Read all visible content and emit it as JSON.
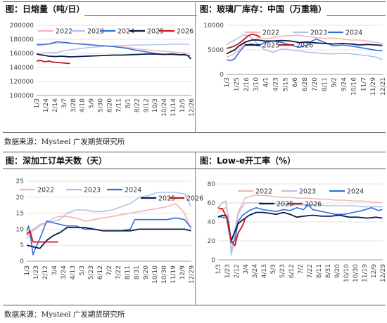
{
  "panels": [
    {
      "title": "图：日熔量（吨/日）"
    },
    {
      "title": "图：玻璃厂库存：中国（万重箱）"
    },
    {
      "title": "图：深加工订单天数（天）"
    },
    {
      "title": "图：Low-e开工率（%）"
    }
  ],
  "sources": [
    "数据来源：Mysteel 广发期货研究所",
    "数据来源：Mysteel 广发期货研究所"
  ],
  "colors": {
    "s2022": "#f4b6b6",
    "s2023": "#aec3ea",
    "s2024": "#2f6fdb",
    "s2025": "#0b1a4a",
    "s2026": "#c6161c"
  },
  "chart_data": [
    {
      "type": "line",
      "title": "图：日熔量（吨/日）",
      "ylim": [
        100000,
        200000
      ],
      "yticks": [
        100000,
        120000,
        140000,
        160000,
        180000,
        200000
      ],
      "ytick_labels": [
        "100000",
        "120000",
        "140000",
        "160000",
        "180000",
        "200000"
      ],
      "xticks": [
        "1/3",
        "1/24",
        "2/14",
        "3/7",
        "3/28",
        "4/18",
        "5/9",
        "5/30",
        "6/20",
        "7/11",
        "8/1",
        "8/22",
        "9/12",
        "10/3",
        "10/24",
        "11/14",
        "12/5",
        "12/26"
      ],
      "legend": [
        "2022",
        "2023",
        "2024",
        "2025",
        "2026"
      ],
      "series": [
        {
          "name": "2022",
          "color": "#f4b6b6",
          "x": [
            1,
            12,
            20,
            30,
            45,
            60,
            80,
            100,
            120,
            140,
            150,
            170,
            200,
            220,
            240,
            260,
            280,
            300,
            320,
            340,
            360
          ],
          "values": [
            171000,
            171500,
            172000,
            173000,
            174500,
            174500,
            174000,
            174000,
            173000,
            172000,
            171000,
            170000,
            169000,
            168000,
            166000,
            165000,
            164000,
            163000,
            162000,
            161000,
            160000
          ]
        },
        {
          "name": "2023",
          "color": "#aec3ea",
          "x": [
            1,
            15,
            30,
            50,
            60,
            80,
            100,
            120,
            140,
            160,
            180,
            200,
            220,
            240,
            260,
            280,
            300,
            320,
            340,
            360
          ],
          "values": [
            160000,
            160500,
            161000,
            161500,
            163000,
            165000,
            166500,
            168000,
            169000,
            170000,
            170500,
            171000,
            171500,
            172000,
            172000,
            172500,
            172500,
            173000,
            173000,
            173000
          ]
        },
        {
          "name": "2024",
          "color": "#2f6fdb",
          "x": [
            1,
            10,
            20,
            30,
            40,
            50,
            60,
            70,
            90,
            110,
            130,
            150,
            170,
            190,
            210,
            230,
            250,
            270,
            290,
            310,
            330,
            350,
            362
          ],
          "values": [
            173000,
            172500,
            173000,
            173500,
            175000,
            176500,
            176000,
            175500,
            174000,
            173000,
            172000,
            171000,
            170500,
            169000,
            167500,
            165000,
            163000,
            161000,
            159000,
            158500,
            158000,
            157500,
            157000
          ]
        },
        {
          "name": "2025",
          "color": "#0b1a4a",
          "x": [
            1,
            15,
            30,
            45,
            60,
            80,
            100,
            120,
            140,
            160,
            180,
            200,
            220,
            240,
            260,
            280,
            300,
            320,
            340,
            350,
            358,
            364
          ],
          "values": [
            159000,
            157500,
            156000,
            155500,
            156000,
            155000,
            155500,
            156000,
            156500,
            157000,
            157500,
            157500,
            158000,
            158500,
            159000,
            159000,
            158500,
            159000,
            158000,
            158500,
            156000,
            152000
          ]
        },
        {
          "name": "2026",
          "color": "#c6161c",
          "x": [
            1,
            10,
            20,
            30,
            40,
            50,
            60,
            70,
            80
          ],
          "values": [
            149000,
            150000,
            148000,
            149000,
            147500,
            147000,
            146500,
            146000,
            145500
          ]
        }
      ]
    },
    {
      "type": "line",
      "title": "图：玻璃厂库存：中国（万重箱）",
      "ylim": [
        0,
        10000
      ],
      "yticks": [
        0,
        5000,
        10000
      ],
      "ytick_labels": [
        "0",
        "5000",
        "10000"
      ],
      "xticks": [
        "1/3",
        "1/25",
        "2/16",
        "3/10",
        "4/1",
        "4/23",
        "5/15",
        "6/6",
        "6/28",
        "7/20",
        "8/11",
        "9/2",
        "9/24",
        "10/16",
        "11/7",
        "11/29",
        "12/21"
      ],
      "legend": [
        "2022",
        "2023",
        "2024",
        "2025",
        "2026"
      ],
      "series": [
        {
          "name": "2022",
          "color": "#f4b6b6",
          "x": [
            1,
            15,
            30,
            45,
            60,
            75,
            90,
            110,
            130,
            150,
            170,
            190,
            210,
            230,
            250,
            270,
            290,
            310,
            330,
            350,
            364
          ],
          "values": [
            3500,
            4000,
            5000,
            6500,
            7000,
            7500,
            7200,
            7500,
            7800,
            7900,
            8000,
            7700,
            7500,
            7300,
            7400,
            7200,
            7000,
            7000,
            6800,
            6500,
            6300
          ]
        },
        {
          "name": "2023",
          "color": "#aec3ea",
          "x": [
            1,
            10,
            20,
            30,
            40,
            55,
            70,
            90,
            110,
            130,
            150,
            170,
            190,
            210,
            230,
            250,
            270,
            290,
            310,
            330,
            350,
            364
          ],
          "values": [
            6000,
            6600,
            7000,
            7500,
            8100,
            7800,
            6500,
            5000,
            4500,
            5200,
            5000,
            4800,
            4500,
            4400,
            4200,
            4200,
            4300,
            4200,
            4000,
            3800,
            3500,
            3000
          ]
        },
        {
          "name": "2024",
          "color": "#2f6fdb",
          "x": [
            1,
            10,
            20,
            30,
            45,
            60,
            75,
            90,
            110,
            130,
            150,
            170,
            190,
            200,
            210,
            230,
            250,
            270,
            290,
            310,
            330,
            350,
            364
          ],
          "values": [
            3000,
            2800,
            3200,
            4500,
            6000,
            6200,
            5800,
            6500,
            6800,
            6500,
            6000,
            5500,
            6000,
            6800,
            7200,
            6500,
            5800,
            6000,
            5800,
            5500,
            5200,
            4900,
            4800
          ]
        },
        {
          "name": "2025",
          "color": "#0b1a4a",
          "x": [
            1,
            10,
            20,
            30,
            45,
            60,
            75,
            90,
            110,
            130,
            150,
            170,
            190,
            210,
            230,
            250,
            270,
            290,
            310,
            330,
            350,
            364
          ],
          "values": [
            4200,
            4600,
            5000,
            5800,
            6600,
            7000,
            7000,
            6800,
            6800,
            6900,
            6800,
            6500,
            6600,
            6400,
            6300,
            6200,
            6300,
            6200,
            6000,
            6100,
            6000,
            5900
          ]
        },
        {
          "name": "2026",
          "color": "#c6161c",
          "x": [
            1,
            10,
            20,
            30,
            40,
            50,
            60,
            70,
            80
          ],
          "values": [
            5300,
            5500,
            5800,
            6300,
            7000,
            7800,
            8200,
            8000,
            7600
          ]
        }
      ]
    },
    {
      "type": "line",
      "title": "图：深加工订单天数（天）",
      "ylim": [
        0,
        25
      ],
      "yticks": [
        0,
        5,
        10,
        15,
        20,
        25
      ],
      "ytick_labels": [
        "0",
        "5",
        "10",
        "15",
        "20",
        "25"
      ],
      "xticks": [
        "1/3",
        "1/23",
        "2/12",
        "3/4",
        "3/24",
        "4/13",
        "5/3",
        "5/23",
        "6/12",
        "7/2",
        "7/22",
        "8/11",
        "8/31",
        "9/20",
        "10/10",
        "10/30",
        "11/19",
        "12/9",
        "12/29"
      ],
      "legend": [
        "2022",
        "2023",
        "2024",
        "2025",
        "2026"
      ],
      "series": [
        {
          "name": "2022",
          "color": "#f4b6b6",
          "x": [
            1,
            15,
            30,
            45,
            60,
            75,
            90,
            110,
            130,
            150,
            170,
            190,
            210,
            230,
            250,
            270,
            290,
            310,
            330,
            350,
            364
          ],
          "values": [
            7,
            9.5,
            11,
            12,
            13.5,
            14,
            14,
            13.5,
            12.5,
            13,
            13.5,
            14,
            14.5,
            15,
            15.5,
            16,
            16.5,
            17,
            18,
            15,
            10
          ]
        },
        {
          "name": "2023",
          "color": "#aec3ea",
          "x": [
            1,
            15,
            30,
            45,
            60,
            75,
            90,
            110,
            130,
            150,
            170,
            190,
            210,
            230,
            250,
            270,
            290,
            310,
            330,
            350,
            364
          ],
          "values": [
            8,
            10,
            11.5,
            12,
            12.5,
            13,
            15,
            16,
            16,
            15.5,
            15.5,
            16,
            17,
            18,
            20,
            20.5,
            21.5,
            21.5,
            21.5,
            21,
            17
          ]
        },
        {
          "name": "2024",
          "color": "#2f6fdb",
          "x": [
            1,
            5,
            10,
            15,
            20,
            30,
            45,
            60,
            75,
            90,
            110,
            130,
            150,
            170,
            190,
            210,
            230,
            240,
            250,
            270,
            290,
            310,
            330,
            350,
            364
          ],
          "values": [
            9.5,
            11,
            7,
            2,
            4,
            7,
            12.5,
            12,
            11.5,
            11,
            11,
            10,
            10,
            9.5,
            9.5,
            9.5,
            10,
            13,
            13,
            13,
            13,
            13,
            13.5,
            13,
            10.5
          ]
        },
        {
          "name": "2025",
          "color": "#0b1a4a",
          "x": [
            1,
            15,
            30,
            45,
            60,
            75,
            90,
            110,
            130,
            150,
            170,
            190,
            210,
            230,
            250,
            270,
            290,
            310,
            330,
            350,
            364
          ],
          "values": [
            5,
            4.5,
            4,
            6.5,
            8,
            9,
            10.5,
            10.5,
            10.5,
            10,
            9.5,
            9.5,
            9.5,
            9.5,
            10,
            10,
            10,
            10,
            10,
            10,
            9.5
          ]
        },
        {
          "name": "2026",
          "color": "#c6161c",
          "x": [
            1,
            8,
            15,
            22,
            30,
            40,
            50,
            60,
            70
          ],
          "values": [
            8.5,
            9.5,
            6,
            6,
            6,
            6,
            6,
            6,
            6
          ]
        }
      ]
    },
    {
      "type": "line",
      "title": "图：Low-e开工率（%）",
      "ylim": [
        0,
        80
      ],
      "yticks": [
        0,
        20,
        40,
        60,
        80
      ],
      "ytick_labels": [
        "0",
        "20",
        "40",
        "60",
        "80"
      ],
      "xticks": [
        "1/3",
        "1/23",
        "2/12",
        "3/4",
        "3/24",
        "4/13",
        "5/3",
        "5/23",
        "6/12",
        "7/2",
        "7/22",
        "8/11",
        "8/31",
        "9/20",
        "10/10",
        "10/30",
        "11/19",
        "12/9",
        "12/29"
      ],
      "legend": [
        "2022",
        "2023",
        "2024",
        "2025",
        "2026"
      ],
      "series": [
        {
          "name": "2022",
          "color": "#f4b6b6",
          "x": [
            1,
            10,
            20,
            25,
            30,
            38,
            45,
            60,
            80,
            100,
            120,
            140,
            160,
            180,
            200,
            220,
            240,
            260,
            280,
            300,
            320,
            340,
            364
          ],
          "values": [
            50,
            54,
            55,
            42,
            8,
            30,
            50,
            65,
            68,
            68,
            67,
            66,
            66,
            65,
            65,
            64,
            64,
            63,
            63,
            62,
            62,
            61,
            60
          ]
        },
        {
          "name": "2023",
          "color": "#aec3ea",
          "x": [
            1,
            10,
            18,
            25,
            30,
            38,
            45,
            60,
            80,
            100,
            120,
            140,
            160,
            180,
            200,
            220,
            240,
            260,
            280,
            300,
            320,
            340,
            364
          ],
          "values": [
            55,
            60,
            62,
            40,
            5,
            25,
            48,
            60,
            60,
            60,
            59,
            59,
            58,
            58,
            58,
            58,
            57,
            57,
            57,
            57,
            56,
            56,
            56
          ]
        },
        {
          "name": "2024",
          "color": "#2f6fdb",
          "x": [
            1,
            10,
            20,
            25,
            30,
            38,
            45,
            55,
            70,
            85,
            100,
            115,
            130,
            145,
            160,
            175,
            190,
            200,
            210,
            220,
            240,
            260,
            280,
            300,
            320,
            340,
            355,
            364
          ],
          "values": [
            46,
            45,
            44,
            30,
            18,
            20,
            40,
            47,
            52,
            55,
            53,
            52,
            51,
            53,
            52,
            55,
            53,
            58,
            53,
            52,
            50,
            48,
            48,
            50,
            52,
            55,
            52,
            53
          ]
        },
        {
          "name": "2025",
          "color": "#0b1a4a",
          "x": [
            1,
            10,
            20,
            25,
            30,
            38,
            45,
            55,
            70,
            85,
            100,
            115,
            130,
            145,
            160,
            175,
            190,
            210,
            230,
            250,
            270,
            290,
            310,
            330,
            350,
            364
          ],
          "values": [
            45,
            47,
            46,
            35,
            20,
            30,
            38,
            42,
            47,
            50,
            50,
            49,
            48,
            50,
            48,
            45,
            46,
            47,
            46,
            46,
            47,
            45,
            45,
            44,
            45,
            44
          ]
        },
        {
          "name": "2026",
          "color": "#c6161c",
          "x": [
            1,
            5,
            10,
            20,
            30,
            38,
            45,
            55,
            62
          ],
          "values": [
            55,
            54,
            54,
            45,
            20,
            15,
            28,
            36,
            45
          ]
        }
      ]
    }
  ]
}
